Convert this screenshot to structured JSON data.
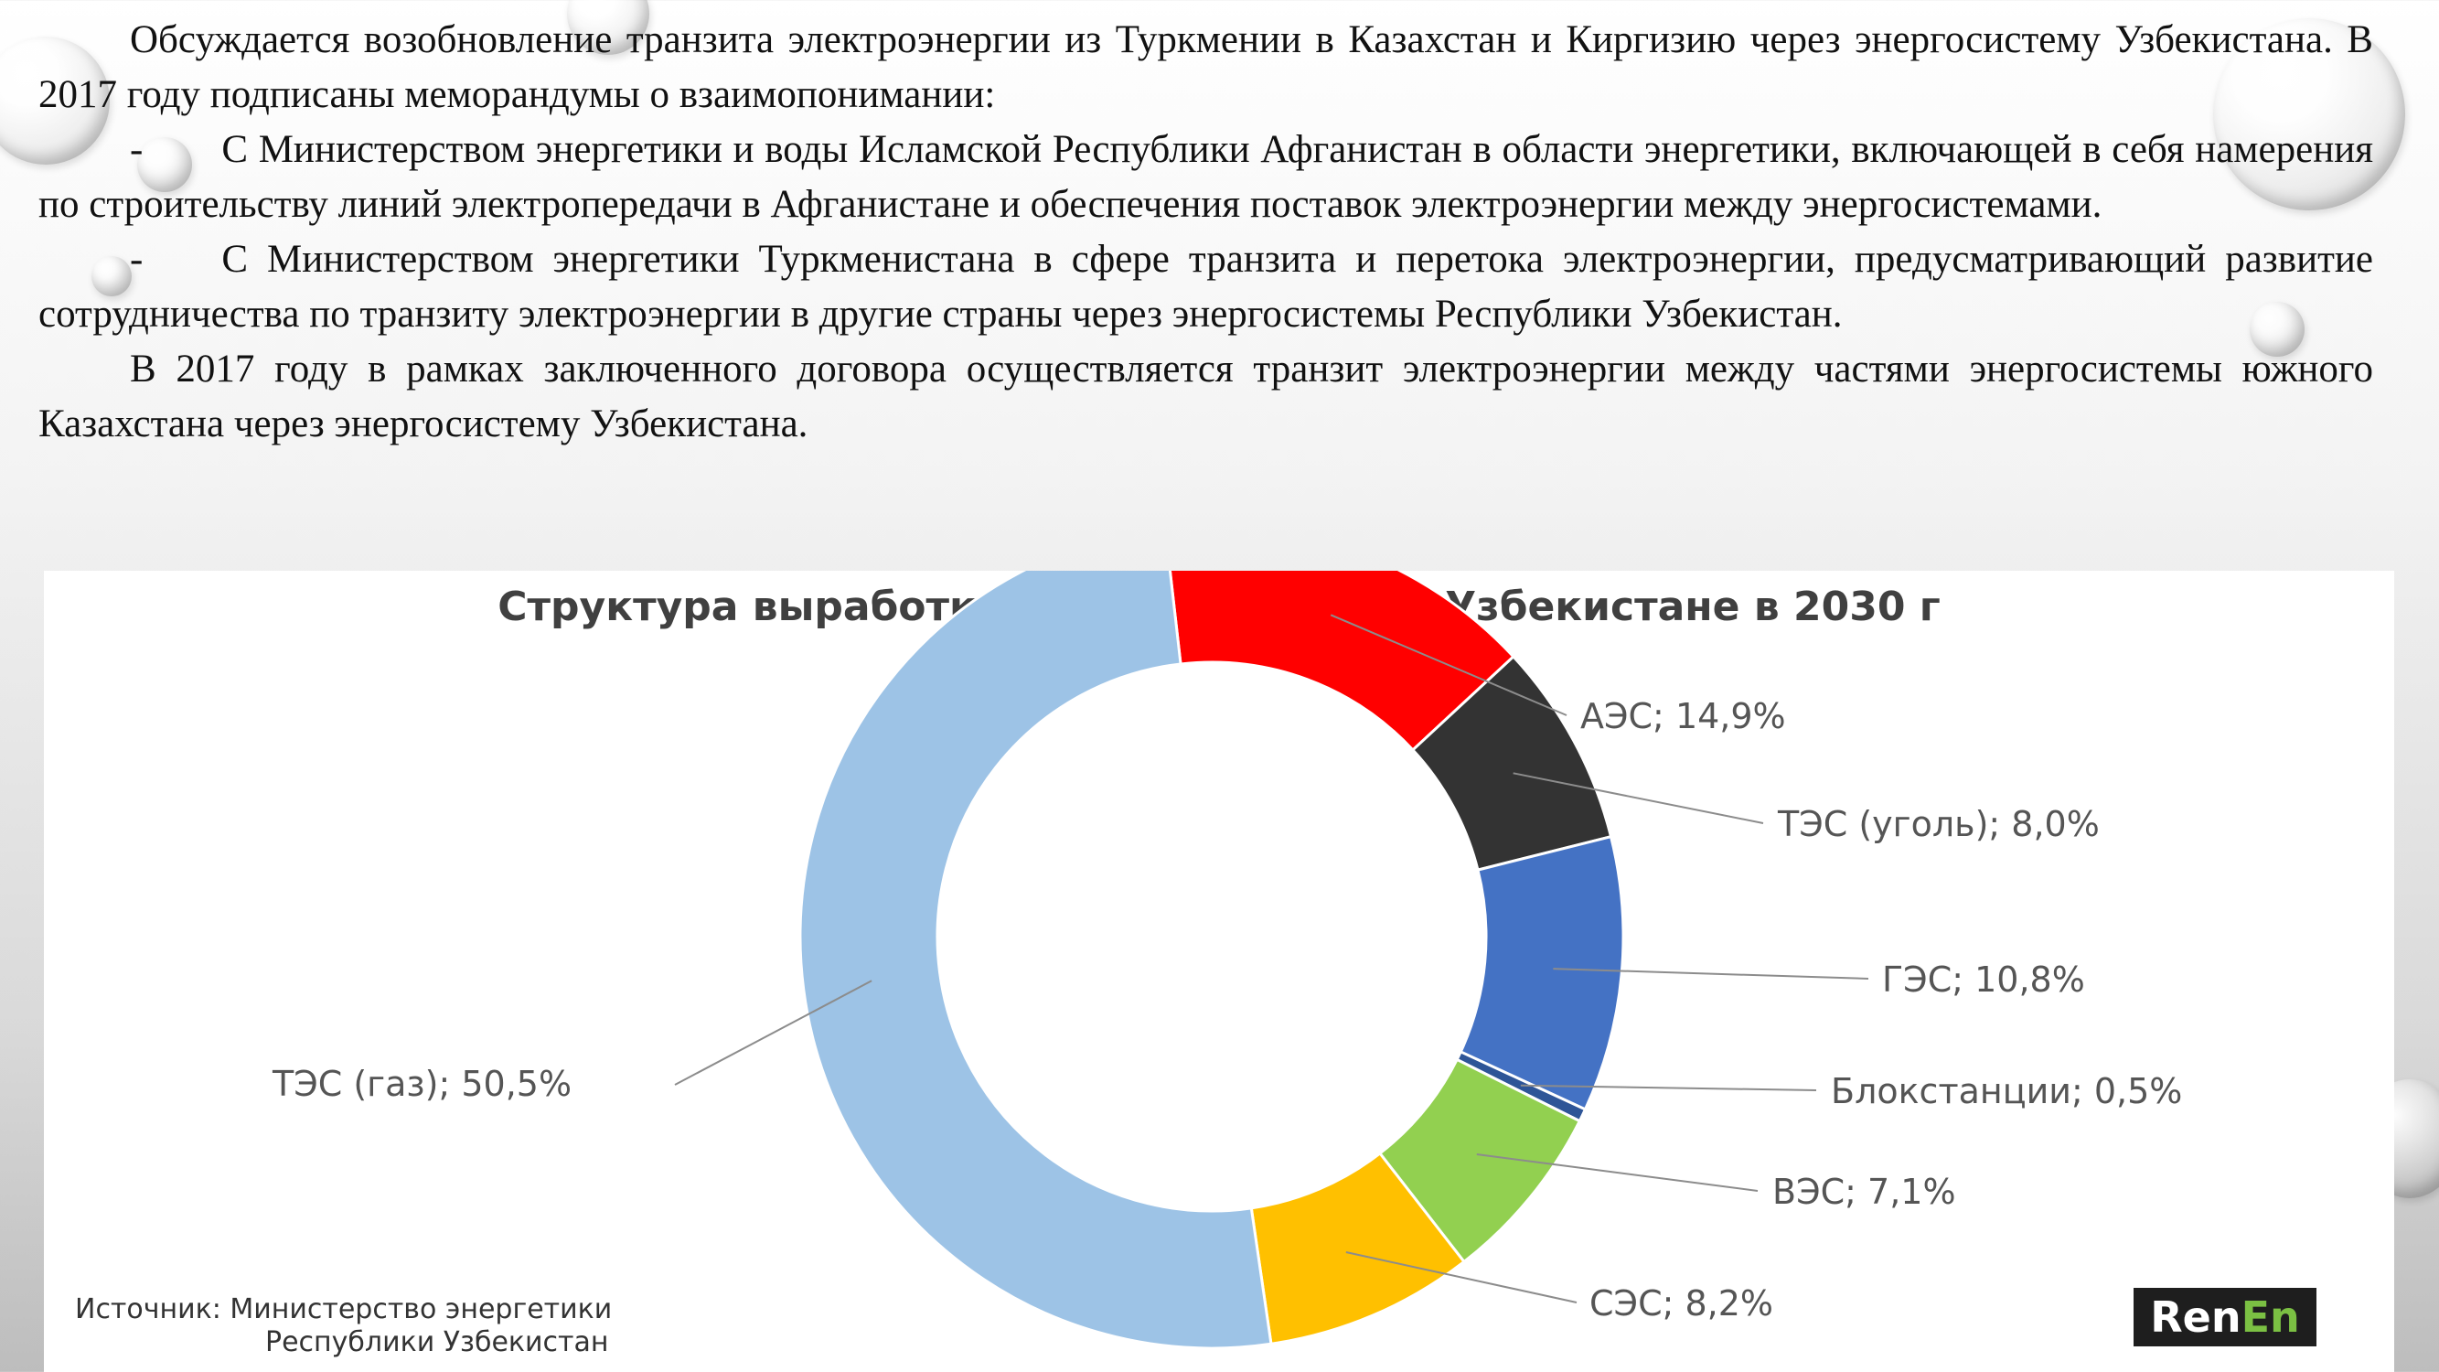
{
  "paragraphs": [
    "Обсуждается возобновление транзита электроэнергии из Туркмении в Казахстан и Киргизию через энергосистему Узбекистана. В 2017 году подписаны меморандумы о взаимопонимании:",
    "-  С Министерством энергетики и воды Исламской Республики Афганистан в области энергетики, включающей в себя намерения по строительству линий электропередачи в Афганистане и обеспечения поставок электроэнергии между энергосистемами.",
    "-  С Министерством энергетики Туркменистана в сфере транзита и перетока электроэнергии, предусматривающий развитие сотрудничества по транзиту электроэнергии в другие страны через энергосистемы Республики Узбекистан.",
    "В 2017 году в рамках заключенного договора осуществляется транзит электроэнергии между частями энергосистемы южного Казахстана через энергосистему Узбекистана."
  ],
  "source": {
    "line1": "Источник: Министерство  энергетики",
    "line2": "Республики Узбекистан"
  },
  "logo": {
    "part1": "Ren",
    "part2": "En"
  },
  "chart_data": {
    "type": "pie",
    "title": "Структура выработки электроэнергии в Узбекистане в 2030 г",
    "donut": true,
    "series": [
      {
        "name": "АЭС",
        "value": 14.9,
        "label": "АЭС; 14,9%",
        "color": "#ff0000"
      },
      {
        "name": "ТЭС (уголь)",
        "value": 8.0,
        "label": "ТЭС (уголь); 8,0%",
        "color": "#333333"
      },
      {
        "name": "ГЭС",
        "value": 10.8,
        "label": "ГЭС; 10,8%",
        "color": "#4472c4"
      },
      {
        "name": "Блокстанции",
        "value": 0.5,
        "label": "Блокстанции; 0,5%",
        "color": "#2e5597"
      },
      {
        "name": "ВЭС",
        "value": 7.1,
        "label": "ВЭС; 7,1%",
        "color": "#92d050"
      },
      {
        "name": "СЭС",
        "value": 8.2,
        "label": "СЭС; 8,2%",
        "color": "#ffc000"
      },
      {
        "name": "ТЭС (газ)",
        "value": 50.5,
        "label": "ТЭС (газ); 50,5%",
        "color": "#9dc3e6"
      }
    ]
  }
}
